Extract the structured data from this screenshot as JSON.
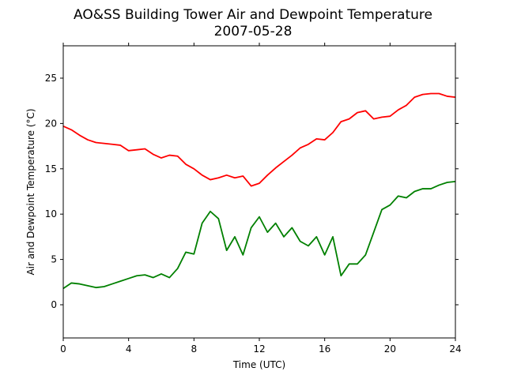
{
  "chart_data": {
    "type": "line",
    "title": "AO&SS Building Tower Air and Dewpoint Temperature",
    "subtitle": "2007-05-28",
    "x_label": "Time (UTC)",
    "y_label": "Air and Dewpoint Temperature (°C)",
    "x": [
      0,
      0.5,
      1,
      1.5,
      2,
      2.5,
      3,
      3.5,
      4,
      4.5,
      5,
      5.5,
      6,
      6.5,
      7,
      7.5,
      8,
      8.5,
      9,
      9.5,
      10,
      10.5,
      11,
      11.5,
      12,
      12.5,
      13,
      13.5,
      14,
      14.5,
      15,
      15.5,
      16,
      16.5,
      17,
      17.5,
      18,
      18.5,
      19,
      19.5,
      20,
      20.5,
      21,
      21.5,
      22,
      22.5,
      23,
      23.5,
      24
    ],
    "series": [
      {
        "color": "#ff0000",
        "values": [
          19.7,
          19.3,
          18.7,
          18.2,
          17.9,
          17.8,
          17.7,
          17.6,
          17.0,
          17.1,
          17.2,
          16.6,
          16.2,
          16.5,
          16.4,
          15.5,
          15.0,
          14.3,
          13.8,
          14.0,
          14.3,
          14.0,
          14.2,
          13.1,
          13.4,
          14.3,
          15.1,
          15.8,
          16.5,
          17.3,
          17.7,
          18.3,
          18.2,
          19.0,
          20.2,
          20.5,
          21.2,
          21.4,
          20.5,
          20.7,
          20.8,
          21.5,
          22.0,
          22.9,
          23.2,
          23.3,
          23.3,
          23.0,
          22.9
        ]
      },
      {
        "color": "#008000",
        "values": [
          1.8,
          2.4,
          2.3,
          2.1,
          1.9,
          2.0,
          2.3,
          2.6,
          2.9,
          3.2,
          3.3,
          3.0,
          3.4,
          3.0,
          4.0,
          5.8,
          5.6,
          9.0,
          10.3,
          9.5,
          6.0,
          7.5,
          5.5,
          8.5,
          9.7,
          8.0,
          9.0,
          7.5,
          8.5,
          7.0,
          6.5,
          7.5,
          5.5,
          7.5,
          3.2,
          4.5,
          4.5,
          5.5,
          8.0,
          10.5,
          11.0,
          12.0,
          11.8,
          12.5,
          12.8,
          12.8,
          13.2,
          13.5,
          13.6
        ]
      }
    ],
    "xlim": [
      0,
      24
    ],
    "xticks": [
      0,
      4,
      8,
      12,
      16,
      20,
      24
    ],
    "ylim": [
      -3.66,
      28.57
    ],
    "yticks": [
      0,
      5,
      10,
      15,
      20,
      25
    ],
    "grid": false
  }
}
